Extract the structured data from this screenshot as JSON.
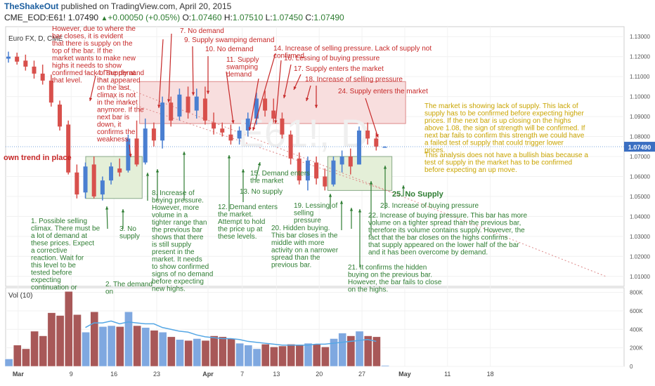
{
  "header": {
    "brand": "TheShakeOut",
    "published": "published on TradingView.com, April 20, 2015",
    "symbol": "CME_EOD:E61!",
    "last": "1.07490",
    "change": "+0.00050 (+0.05%)",
    "o_label": "O:",
    "o": "1.07460",
    "h_label": "H:",
    "h": "1.07510",
    "l_label": "L:",
    "l": "1.07450",
    "c_label": "C:",
    "c": "1.07490"
  },
  "chart_data": {
    "type": "bar",
    "title": "Euro FX, D, CME",
    "price_axis": {
      "ticks": [
        "1.13000",
        "1.12000",
        "1.11000",
        "1.10000",
        "1.09000",
        "1.08000",
        "1.07000",
        "1.06000",
        "1.05000",
        "1.04000",
        "1.03000",
        "1.02000",
        "1.01000"
      ],
      "range": [
        1.005,
        1.135
      ],
      "last_price": "1.07490"
    },
    "volume_axis": {
      "label": "Vol (10)",
      "ticks": [
        "800K",
        "600K",
        "400K",
        "200K",
        "0"
      ],
      "range": [
        0,
        850000
      ]
    },
    "x_ticks": [
      "Mar",
      "9",
      "16",
      "23",
      "Apr",
      "7",
      "13",
      "20",
      "27",
      "May",
      "11",
      "18"
    ],
    "colors": {
      "up": "#4a7fd1",
      "down": "#d8504c",
      "vol_up": "#7fa8e0",
      "vol_down": "#a85858",
      "ma": "#55a7e5",
      "supply_zone": "#f8dede",
      "demand_zone": "#e4efd8",
      "text_red": "#c62828",
      "text_green": "#2e7d32",
      "text_gold": "#c9a400",
      "tag": "#3b6fc2"
    },
    "bars": [
      {
        "o": 1.119,
        "h": 1.1225,
        "l": 1.117,
        "c": 1.12
      },
      {
        "o": 1.12,
        "h": 1.122,
        "l": 1.116,
        "c": 1.1175
      },
      {
        "o": 1.118,
        "h": 1.121,
        "l": 1.113,
        "c": 1.115
      },
      {
        "o": 1.115,
        "h": 1.118,
        "l": 1.109,
        "c": 1.1115
      },
      {
        "o": 1.1115,
        "h": 1.116,
        "l": 1.106,
        "c": 1.108
      },
      {
        "o": 1.108,
        "h": 1.111,
        "l": 1.095,
        "c": 1.097
      },
      {
        "o": 1.096,
        "h": 1.098,
        "l": 1.083,
        "c": 1.085
      },
      {
        "o": 1.086,
        "h": 1.088,
        "l": 1.061,
        "c": 1.062
      },
      {
        "o": 1.062,
        "h": 1.066,
        "l": 1.049,
        "c": 1.051
      },
      {
        "o": 1.052,
        "h": 1.067,
        "l": 1.049,
        "c": 1.065
      },
      {
        "o": 1.066,
        "h": 1.07,
        "l": 1.049,
        "c": 1.05
      },
      {
        "o": 1.051,
        "h": 1.06,
        "l": 1.048,
        "c": 1.058
      },
      {
        "o": 1.058,
        "h": 1.067,
        "l": 1.056,
        "c": 1.065
      },
      {
        "o": 1.064,
        "h": 1.069,
        "l": 1.06,
        "c": 1.062
      },
      {
        "o": 1.063,
        "h": 1.081,
        "l": 1.062,
        "c": 1.079
      },
      {
        "o": 1.079,
        "h": 1.088,
        "l": 1.065,
        "c": 1.066
      },
      {
        "o": 1.067,
        "h": 1.089,
        "l": 1.066,
        "c": 1.084
      },
      {
        "o": 1.084,
        "h": 1.087,
        "l": 1.075,
        "c": 1.078
      },
      {
        "o": 1.078,
        "h": 1.1,
        "l": 1.074,
        "c": 1.097
      },
      {
        "o": 1.097,
        "h": 1.1,
        "l": 1.085,
        "c": 1.088
      },
      {
        "o": 1.09,
        "h": 1.104,
        "l": 1.088,
        "c": 1.101
      },
      {
        "o": 1.1,
        "h": 1.105,
        "l": 1.089,
        "c": 1.092
      },
      {
        "o": 1.093,
        "h": 1.104,
        "l": 1.089,
        "c": 1.1
      },
      {
        "o": 1.099,
        "h": 1.105,
        "l": 1.086,
        "c": 1.088
      },
      {
        "o": 1.087,
        "h": 1.092,
        "l": 1.081,
        "c": 1.084
      },
      {
        "o": 1.084,
        "h": 1.087,
        "l": 1.08,
        "c": 1.082
      },
      {
        "o": 1.081,
        "h": 1.086,
        "l": 1.076,
        "c": 1.078
      },
      {
        "o": 1.079,
        "h": 1.085,
        "l": 1.076,
        "c": 1.083
      },
      {
        "o": 1.083,
        "h": 1.092,
        "l": 1.08,
        "c": 1.089
      },
      {
        "o": 1.089,
        "h": 1.102,
        "l": 1.086,
        "c": 1.099
      },
      {
        "o": 1.099,
        "h": 1.103,
        "l": 1.09,
        "c": 1.093
      },
      {
        "o": 1.093,
        "h": 1.099,
        "l": 1.087,
        "c": 1.089
      },
      {
        "o": 1.089,
        "h": 1.092,
        "l": 1.079,
        "c": 1.081
      },
      {
        "o": 1.081,
        "h": 1.083,
        "l": 1.066,
        "c": 1.069
      },
      {
        "o": 1.069,
        "h": 1.072,
        "l": 1.056,
        "c": 1.058
      },
      {
        "o": 1.058,
        "h": 1.07,
        "l": 1.053,
        "c": 1.068
      },
      {
        "o": 1.067,
        "h": 1.07,
        "l": 1.056,
        "c": 1.059
      },
      {
        "o": 1.06,
        "h": 1.064,
        "l": 1.053,
        "c": 1.055
      },
      {
        "o": 1.056,
        "h": 1.07,
        "l": 1.055,
        "c": 1.068
      },
      {
        "o": 1.066,
        "h": 1.073,
        "l": 1.062,
        "c": 1.07
      },
      {
        "o": 1.07,
        "h": 1.074,
        "l": 1.061,
        "c": 1.065
      },
      {
        "o": 1.066,
        "h": 1.085,
        "l": 1.066,
        "c": 1.083
      },
      {
        "o": 1.083,
        "h": 1.087,
        "l": 1.076,
        "c": 1.079
      },
      {
        "o": 1.079,
        "h": 1.082,
        "l": 1.073,
        "c": 1.075
      },
      {
        "o": 1.0746,
        "h": 1.0751,
        "l": 1.0745,
        "c": 1.0749
      }
    ],
    "volume": [
      80000,
      230000,
      190000,
      380000,
      330000,
      580000,
      550000,
      810000,
      560000,
      370000,
      590000,
      430000,
      440000,
      430000,
      590000,
      440000,
      420000,
      390000,
      370000,
      320000,
      290000,
      280000,
      300000,
      280000,
      330000,
      320000,
      300000,
      250000,
      230000,
      190000,
      240000,
      210000,
      220000,
      240000,
      230000,
      250000,
      240000,
      210000,
      300000,
      360000,
      330000,
      380000,
      330000,
      320000,
      10000
    ],
    "volume_ma": [
      null,
      null,
      null,
      null,
      null,
      null,
      null,
      null,
      null,
      420000,
      470000,
      470000,
      490000,
      460000,
      480000,
      470000,
      460000,
      460000,
      420000,
      400000,
      380000,
      370000,
      340000,
      320000,
      310000,
      300000,
      300000,
      290000,
      270000,
      260000,
      250000,
      240000,
      230000,
      230000,
      230000,
      230000,
      240000,
      240000,
      250000,
      260000,
      270000,
      280000,
      290000,
      270000,
      null
    ],
    "lead_in_label": "own trend in place",
    "annotations": [
      {
        "id": "1",
        "text": "1. Possible selling climax. There must be a lot of demand at these prices. Expect a corrective reaction. Wait for this level to be tested before expecting continuation or",
        "color": "green"
      },
      {
        "id": "2",
        "text": "2. The demand on",
        "color": "green"
      },
      {
        "id": "3",
        "text": "3. No supply",
        "color": "green"
      },
      {
        "id": "4",
        "text": "4. The demand that appeared on the last climax is not in the market anymore. If the next bar is down, it confirms the weakness.",
        "color": "red"
      },
      {
        "id": "5",
        "text": "However, due to where the bar closes, it is evident that there is supply on the top of the bar. If the market wants to make new highs it needs to show confirmed lack of supply at that level.",
        "color": "red"
      },
      {
        "id": "7",
        "text": "7. No demand",
        "color": "red"
      },
      {
        "id": "8",
        "text": "8. Increase of buying pressure. However, more volume in a tighter range than the previous bar shows that there is still supply present in the market. It needs to show confirmed signs of no demand before expecting new highs.",
        "color": "green"
      },
      {
        "id": "9",
        "text": "9. Supply swamping demand",
        "color": "red"
      },
      {
        "id": "10",
        "text": "10. No demand",
        "color": "red"
      },
      {
        "id": "11",
        "text": "11. Supply swamping demand",
        "color": "red"
      },
      {
        "id": "12",
        "text": "12. Demand enters the market. Attempt to hold the price up at these levels.",
        "color": "green"
      },
      {
        "id": "13",
        "text": "13. No supply",
        "color": "green"
      },
      {
        "id": "14",
        "text": "14. Increase of selling pressure. Lack of supply not confirmed",
        "color": "red"
      },
      {
        "id": "15",
        "text": "15. Demand enters the market",
        "color": "green"
      },
      {
        "id": "16",
        "text": "16. Lessing of buying pressure",
        "color": "red"
      },
      {
        "id": "17",
        "text": "17. Supply enters the market",
        "color": "red"
      },
      {
        "id": "18",
        "text": "18. Increase of selling pressure",
        "color": "red"
      },
      {
        "id": "19",
        "text": "19. Lessing of selling pressure",
        "color": "green"
      },
      {
        "id": "20",
        "text": "20. Hidden buying. This bar closes in the middle with more activity on a narrower spread than the previous bar.",
        "color": "green"
      },
      {
        "id": "21",
        "text": "21. It confirms the hidden buying on the previous bar. However, the bar fails to close on the highs.",
        "color": "green"
      },
      {
        "id": "22",
        "text": "22. Increase of buying pressure. This bar has more volume on a tighter spread than the previous bar, therefore its volume contains supply. However, the fact that the bar closes on the highs confirms that supply appeared on the lower half of the bar and it has been overcome by demand.",
        "color": "green"
      },
      {
        "id": "23",
        "text": "23. Increase of buying pressure",
        "color": "green"
      },
      {
        "id": "24",
        "text": "24. Supply enters the market",
        "color": "red"
      },
      {
        "id": "25",
        "text": "25. No Supply",
        "color": "green"
      },
      {
        "id": "s1",
        "text": "The market is showing lack of supply. This lack of supply has to be confirmed before expecting higher prices. If the next bar is up closing on the highs above 1.08, the sign of strength will be confirmed. If next bar fails to confirm this strength we could have a failed test of supply that could trigger lower prices.",
        "color": "gold"
      },
      {
        "id": "s2",
        "text": "This analysis does not have a bullish bias because a test of supply in the market has to be confirmed before expecting an up move.",
        "color": "gold"
      }
    ]
  }
}
